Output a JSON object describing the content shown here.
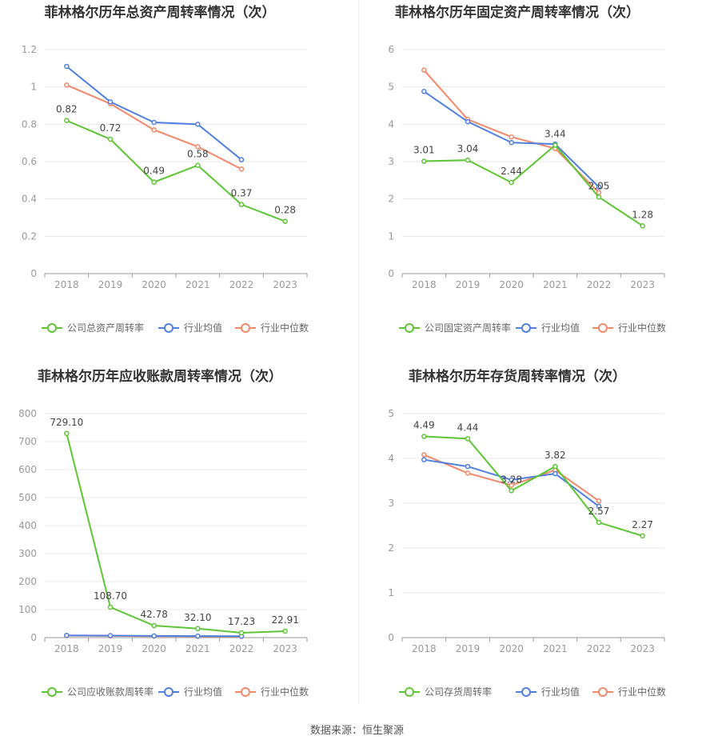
{
  "source_text": "数据来源：恒生聚源",
  "colors": {
    "company": "#5ec535",
    "avg": "#4f7fe1",
    "median": "#f2886a"
  },
  "chart_data": [
    {
      "type": "line",
      "title": "菲林格尔历年总资产周转率情况（次）",
      "categories": [
        "2018",
        "2019",
        "2020",
        "2021",
        "2022",
        "2023"
      ],
      "yticks": [
        "0",
        "0.2",
        "0.4",
        "0.6",
        "0.8",
        "1",
        "1.2"
      ],
      "ylim": [
        0,
        1.2
      ],
      "grid": true,
      "legend_position": "bottom",
      "series": [
        {
          "name": "公司总资产周转率",
          "color": "#5ec535",
          "values": [
            0.82,
            0.72,
            0.49,
            0.58,
            0.37,
            0.28
          ],
          "labels": [
            "0.82",
            "0.72",
            "0.49",
            "0.58",
            "0.37",
            "0.28"
          ]
        },
        {
          "name": "行业均值",
          "color": "#4f7fe1",
          "values": [
            1.11,
            0.92,
            0.81,
            0.8,
            0.61,
            null
          ]
        },
        {
          "name": "行业中位数",
          "color": "#f2886a",
          "values": [
            1.01,
            0.91,
            0.77,
            0.68,
            0.56,
            null
          ]
        }
      ]
    },
    {
      "type": "line",
      "title": "菲林格尔历年固定资产周转率情况（次）",
      "categories": [
        "2018",
        "2019",
        "2020",
        "2021",
        "2022",
        "2023"
      ],
      "yticks": [
        "0",
        "1",
        "2",
        "3",
        "4",
        "5",
        "6"
      ],
      "ylim": [
        0,
        6
      ],
      "grid": true,
      "legend_position": "bottom",
      "series": [
        {
          "name": "公司固定资产周转率",
          "color": "#5ec535",
          "values": [
            3.01,
            3.04,
            2.44,
            3.44,
            2.05,
            1.28
          ],
          "labels": [
            "3.01",
            "3.04",
            "2.44",
            "3.44",
            "2.05",
            "1.28"
          ]
        },
        {
          "name": "行业均值",
          "color": "#4f7fe1",
          "values": [
            4.88,
            4.07,
            3.51,
            3.47,
            2.32,
            null
          ]
        },
        {
          "name": "行业中位数",
          "color": "#f2886a",
          "values": [
            5.45,
            4.13,
            3.66,
            3.35,
            2.17,
            null
          ]
        }
      ]
    },
    {
      "type": "line",
      "title": "菲林格尔历年应收账款周转率情况（次）",
      "categories": [
        "2018",
        "2019",
        "2020",
        "2021",
        "2022",
        "2023"
      ],
      "yticks": [
        "0",
        "100",
        "200",
        "300",
        "400",
        "500",
        "600",
        "700",
        "800"
      ],
      "ylim": [
        0,
        800
      ],
      "grid": true,
      "legend_position": "bottom",
      "series": [
        {
          "name": "公司应收账款周转率",
          "color": "#5ec535",
          "values": [
            729.1,
            108.7,
            42.78,
            32.1,
            17.23,
            22.91
          ],
          "labels": [
            "729.10",
            "108.70",
            "42.78",
            "32.10",
            "17.23",
            "22.91"
          ]
        },
        {
          "name": "行业均值",
          "color": "#4f7fe1",
          "values": [
            8,
            7,
            6,
            5.5,
            5,
            null
          ]
        },
        {
          "name": "行业中位数",
          "color": "#f2886a",
          "values": [
            7,
            6,
            5,
            4.5,
            4,
            null
          ]
        }
      ]
    },
    {
      "type": "line",
      "title": "菲林格尔历年存货周转率情况（次）",
      "categories": [
        "2018",
        "2019",
        "2020",
        "2021",
        "2022",
        "2023"
      ],
      "yticks": [
        "0",
        "1",
        "2",
        "3",
        "4",
        "5"
      ],
      "ylim": [
        0,
        5
      ],
      "grid": true,
      "legend_position": "bottom",
      "series": [
        {
          "name": "公司存货周转率",
          "color": "#5ec535",
          "values": [
            4.49,
            4.44,
            3.28,
            3.82,
            2.57,
            2.27
          ],
          "labels": [
            "4.49",
            "4.44",
            "3.28",
            "3.82",
            "2.57",
            "2.27"
          ]
        },
        {
          "name": "行业均值",
          "color": "#4f7fe1",
          "values": [
            3.97,
            3.82,
            3.52,
            3.66,
            2.93,
            null
          ]
        },
        {
          "name": "行业中位数",
          "color": "#f2886a",
          "values": [
            4.08,
            3.67,
            3.4,
            3.74,
            3.05,
            null
          ]
        }
      ]
    }
  ]
}
